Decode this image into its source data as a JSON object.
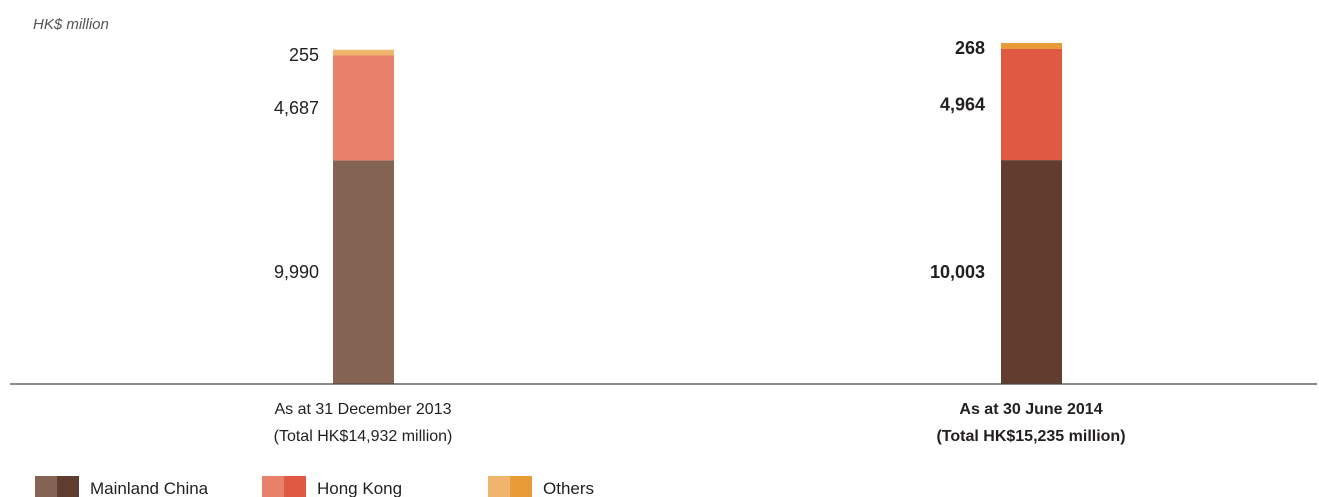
{
  "chart_data": {
    "type": "bar",
    "stacked": true,
    "unit_label": "HK$ million",
    "categories": [
      {
        "label": "As at 31 December 2013",
        "sublabel": "(Total HK$14,932 million)",
        "emphasis": false
      },
      {
        "label": "As at 30 June 2014",
        "sublabel": "(Total HK$15,235 million)",
        "emphasis": true
      }
    ],
    "series": [
      {
        "name": "Mainland China",
        "values": [
          9990,
          10003
        ],
        "value_labels": [
          "9,990",
          "10,003"
        ],
        "colors": [
          "#866453",
          "#613d2f"
        ]
      },
      {
        "name": "Hong Kong",
        "values": [
          4687,
          4964
        ],
        "value_labels": [
          "4,687",
          "4,964"
        ],
        "colors": [
          "#e8806a",
          "#df5943"
        ]
      },
      {
        "name": "Others",
        "values": [
          255,
          268
        ],
        "value_labels": [
          "255",
          "268"
        ],
        "colors": [
          "#f0b46e",
          "#e89c38"
        ]
      }
    ],
    "ylim": [
      0,
      15235
    ],
    "grid": false,
    "legend_position": "bottom-left"
  }
}
